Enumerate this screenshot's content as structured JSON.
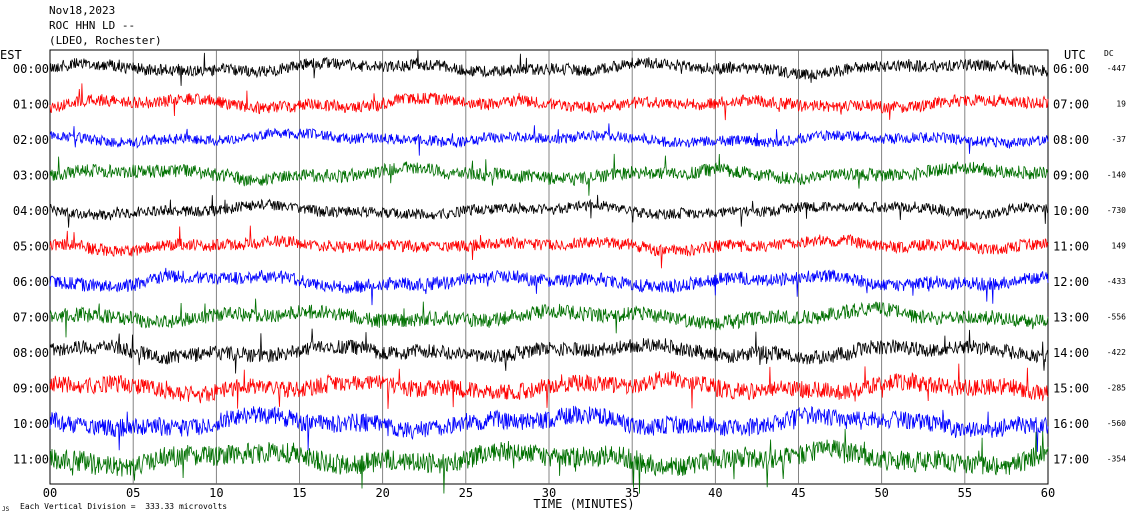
{
  "header": {
    "date": "Nov18,2023",
    "station": "ROC HHN LD --",
    "network": "(LDEO, Rochester)"
  },
  "left_timezone": "EST",
  "right_timezone": "UTC",
  "dc_header": "DC",
  "footer_note": "Each Vertical Division =  333.33 microvolts",
  "footer_mark": "JS",
  "chart_data": {
    "type": "line",
    "title": "Nov18,2023 ROC HHN LD -- (LDEO, Rochester)",
    "xlabel": "TIME (MINUTES)",
    "xlim": [
      0,
      60
    ],
    "x_ticks": [
      "00",
      "05",
      "10",
      "15",
      "20",
      "25",
      "30",
      "35",
      "40",
      "45",
      "50",
      "55",
      "60"
    ],
    "grid": "vertical lines every 5 minutes",
    "rows": [
      {
        "est": "00:00",
        "utc": "06:00",
        "dc": "-447",
        "color": "#000000",
        "amp": 9
      },
      {
        "est": "01:00",
        "utc": "07:00",
        "dc": "19",
        "color": "#ff0000",
        "amp": 9
      },
      {
        "est": "02:00",
        "utc": "08:00",
        "dc": "-37",
        "color": "#0000ff",
        "amp": 8
      },
      {
        "est": "03:00",
        "utc": "09:00",
        "dc": "-140",
        "color": "#007000",
        "amp": 10
      },
      {
        "est": "04:00",
        "utc": "10:00",
        "dc": "-730",
        "color": "#000000",
        "amp": 8
      },
      {
        "est": "05:00",
        "utc": "11:00",
        "dc": "149",
        "color": "#ff0000",
        "amp": 9
      },
      {
        "est": "06:00",
        "utc": "12:00",
        "dc": "-433",
        "color": "#0000ff",
        "amp": 10
      },
      {
        "est": "07:00",
        "utc": "13:00",
        "dc": "-556",
        "color": "#007000",
        "amp": 11
      },
      {
        "est": "08:00",
        "utc": "14:00",
        "dc": "-422",
        "color": "#000000",
        "amp": 11
      },
      {
        "est": "09:00",
        "utc": "15:00",
        "dc": "-285",
        "color": "#ff0000",
        "amp": 13
      },
      {
        "est": "10:00",
        "utc": "16:00",
        "dc": "-560",
        "color": "#0000ff",
        "amp": 14
      },
      {
        "est": "11:00",
        "utc": "17:00",
        "dc": "-354",
        "color": "#007000",
        "amp": 16
      }
    ]
  }
}
